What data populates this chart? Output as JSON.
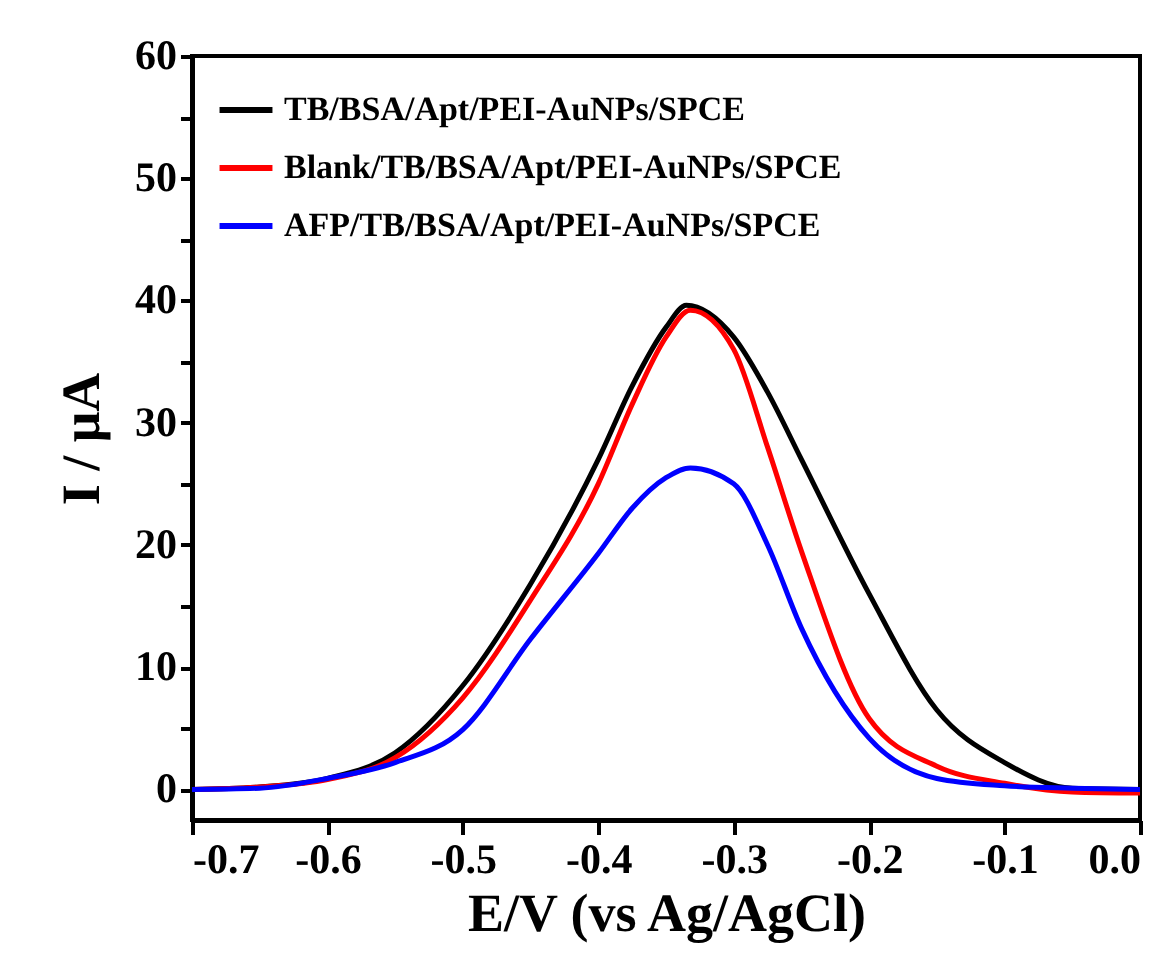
{
  "chart_data": {
    "type": "line",
    "xlabel": "E/V (vs Ag/AgCl)",
    "ylabel": "I / μA",
    "xlim": [
      -0.7,
      0
    ],
    "ylim": [
      -2.5,
      60
    ],
    "xticks": [
      -0.7,
      -0.6,
      -0.5,
      -0.4,
      -0.3,
      -0.2,
      -0.1,
      {
        "value": 0,
        "label": "0.0"
      }
    ],
    "yticks": [
      0,
      {
        "value": 5,
        "label": null
      },
      10,
      {
        "value": 15,
        "label": null
      },
      20,
      {
        "value": 25,
        "label": null
      },
      30,
      {
        "value": 35,
        "label": null
      },
      40,
      {
        "value": 45,
        "label": null
      },
      50,
      {
        "value": 55,
        "label": null
      },
      60
    ],
    "legend": "top left",
    "series": [
      {
        "name": "TB/BSA/Apt/PEI-AuNPs/SPCE",
        "color": "#000000",
        "x": [
          -0.7,
          -0.65,
          -0.6,
          -0.55,
          -0.5,
          -0.45,
          -0.4,
          -0.375,
          -0.35,
          -0.335,
          -0.3,
          -0.275,
          -0.25,
          -0.2,
          -0.15,
          -0.1,
          -0.05,
          0
        ],
        "values": [
          0,
          0.2,
          0.9,
          3.0,
          8.5,
          16.8,
          27,
          33,
          37.8,
          39.6,
          37,
          32.5,
          27,
          16,
          6.5,
          2.2,
          0.1,
          0
        ]
      },
      {
        "name": "Blank/TB/BSA/Apt/PEI-AuNPs/SPCE",
        "color": "#ff0000",
        "x": [
          -0.7,
          -0.65,
          -0.6,
          -0.55,
          -0.5,
          -0.45,
          -0.4,
          -0.375,
          -0.35,
          -0.332,
          -0.3,
          -0.275,
          -0.25,
          -0.2,
          -0.15,
          -0.1,
          -0.05,
          0
        ],
        "values": [
          0,
          0.2,
          0.8,
          2.6,
          7.5,
          15.5,
          25,
          31.5,
          37,
          39.2,
          36,
          28,
          19.5,
          5.8,
          1.9,
          0.5,
          -0.2,
          -0.3
        ]
      },
      {
        "name": "AFP/TB/BSA/Apt/PEI-AuNPs/SPCE",
        "color": "#0000ff",
        "x": [
          -0.7,
          -0.65,
          -0.6,
          -0.55,
          -0.5,
          -0.45,
          -0.4,
          -0.375,
          -0.35,
          -0.332,
          -0.3,
          -0.275,
          -0.25,
          -0.2,
          -0.15,
          -0.1,
          -0.05,
          0
        ],
        "values": [
          0,
          0.1,
          0.9,
          2.2,
          4.9,
          12.3,
          19.3,
          23,
          25.5,
          26.3,
          25,
          20,
          13.2,
          4.2,
          0.9,
          0.3,
          0.1,
          0
        ]
      }
    ]
  }
}
